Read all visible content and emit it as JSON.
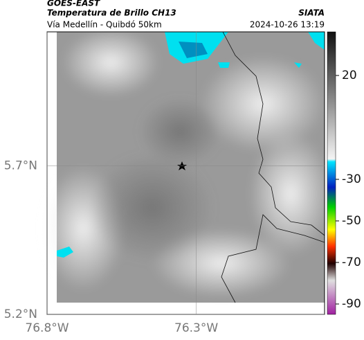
{
  "header": {
    "source": "GOES-EAST",
    "title": "Temperatura de Brillo CH13",
    "org": "SIATA",
    "subtitle": "Vía Medellín - Quibdó 50km",
    "datetime": "2024-10-26 13:19"
  },
  "map": {
    "xlim": [
      -76.8,
      -75.87
    ],
    "ylim": [
      5.2,
      6.15
    ],
    "xticks": [
      {
        "value": -76.8,
        "label": "76.8°W"
      },
      {
        "value": -76.3,
        "label": "76.3°W"
      }
    ],
    "yticks": [
      {
        "value": 5.7,
        "label": "5.7°N"
      },
      {
        "value": 5.2,
        "label": "5.2°N"
      }
    ]
  },
  "colorbar": {
    "lim": [
      -95,
      41
    ],
    "ticks": [
      20,
      -30,
      -50,
      -70,
      -90
    ]
  }
}
